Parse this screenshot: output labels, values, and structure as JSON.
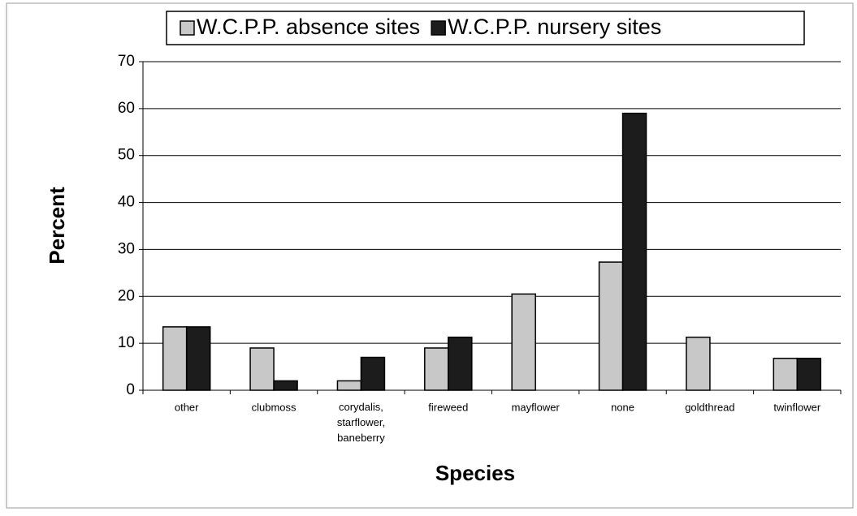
{
  "chart_data": {
    "type": "bar",
    "xlabel": "Species",
    "ylabel": "Percent",
    "categories": [
      "other",
      "clubmoss",
      "corydalis, starflower, baneberry",
      "fireweed",
      "mayflower",
      "none",
      "goldthread",
      "twinflower"
    ],
    "series": [
      {
        "name": "W.C.P.P. absence sites",
        "color": "#c8c8c8",
        "values": [
          13.5,
          9,
          2,
          9,
          20.5,
          27.3,
          11.3,
          6.8
        ]
      },
      {
        "name": "W.C.P.P. nursery sites",
        "color": "#1c1c1c",
        "values": [
          13.5,
          2,
          7,
          11.3,
          0,
          59,
          0,
          6.8
        ]
      }
    ],
    "ylim": [
      0,
      70
    ],
    "yticks": [
      0,
      10,
      20,
      30,
      40,
      50,
      60,
      70
    ],
    "grid": true,
    "legend": "top"
  }
}
